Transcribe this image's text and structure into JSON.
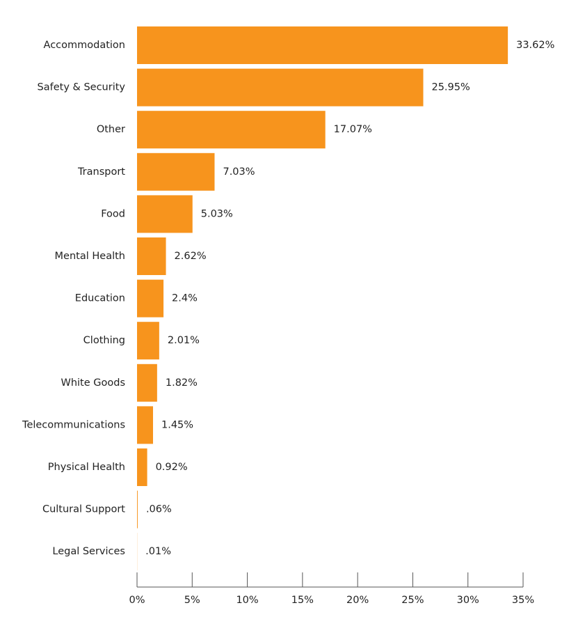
{
  "chart_data": {
    "type": "bar",
    "orientation": "horizontal",
    "categories": [
      "Accommodation",
      "Safety & Security",
      "Other",
      "Transport",
      "Food",
      "Mental Health",
      "Education",
      "Clothing",
      "White Goods",
      "Telecommunications",
      "Physical Health",
      "Cultural Support",
      "Legal Services"
    ],
    "values": [
      33.62,
      25.95,
      17.07,
      7.03,
      5.03,
      2.62,
      2.4,
      2.01,
      1.82,
      1.45,
      0.92,
      0.06,
      0.01
    ],
    "value_labels": [
      "33.62%",
      "25.95%",
      "17.07%",
      "7.03%",
      "5.03%",
      "2.62%",
      "2.4%",
      "2.01%",
      "1.82%",
      "1.45%",
      "0.92%",
      ".06%",
      ".01%"
    ],
    "color": "#f7941d",
    "xlim": [
      0,
      35
    ],
    "xticks": [
      {
        "value": 0,
        "label": "0%"
      },
      {
        "value": 5,
        "label": "5%"
      },
      {
        "value": 10,
        "label": "10%"
      },
      {
        "value": 15,
        "label": "15%"
      },
      {
        "value": 20,
        "label": "20%"
      },
      {
        "value": 25,
        "label": "25%"
      },
      {
        "value": 30,
        "label": "30%"
      },
      {
        "value": 35,
        "label": "35%"
      }
    ]
  }
}
